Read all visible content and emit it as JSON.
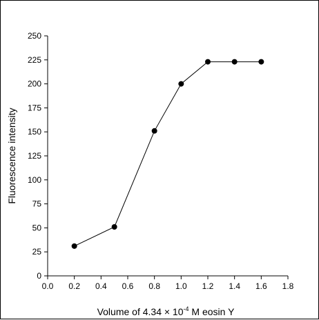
{
  "chart_data": {
    "type": "line",
    "title": "",
    "xlabel_parts": {
      "prefix": "Volume of 4.34 × 10",
      "exponent": "-4",
      "suffix": " M eosin Y"
    },
    "ylabel": "Fluorescence intensity",
    "xlim": [
      0.0,
      1.8
    ],
    "ylim": [
      0,
      250
    ],
    "x_ticks": [
      "0.0",
      "0.2",
      "0.4",
      "0.6",
      "0.8",
      "1.0",
      "1.2",
      "1.4",
      "1.6",
      "1.8"
    ],
    "y_ticks": [
      "0",
      "25",
      "50",
      "75",
      "100",
      "125",
      "150",
      "175",
      "200",
      "225",
      "250"
    ],
    "grid": false,
    "legend": "none",
    "series": [
      {
        "x": [
          0.2,
          0.5,
          0.8,
          1.0,
          1.2,
          1.4,
          1.6
        ],
        "y": [
          31,
          51,
          151,
          200,
          223,
          223,
          223
        ],
        "color": "#000000",
        "marker": "circle"
      }
    ]
  }
}
